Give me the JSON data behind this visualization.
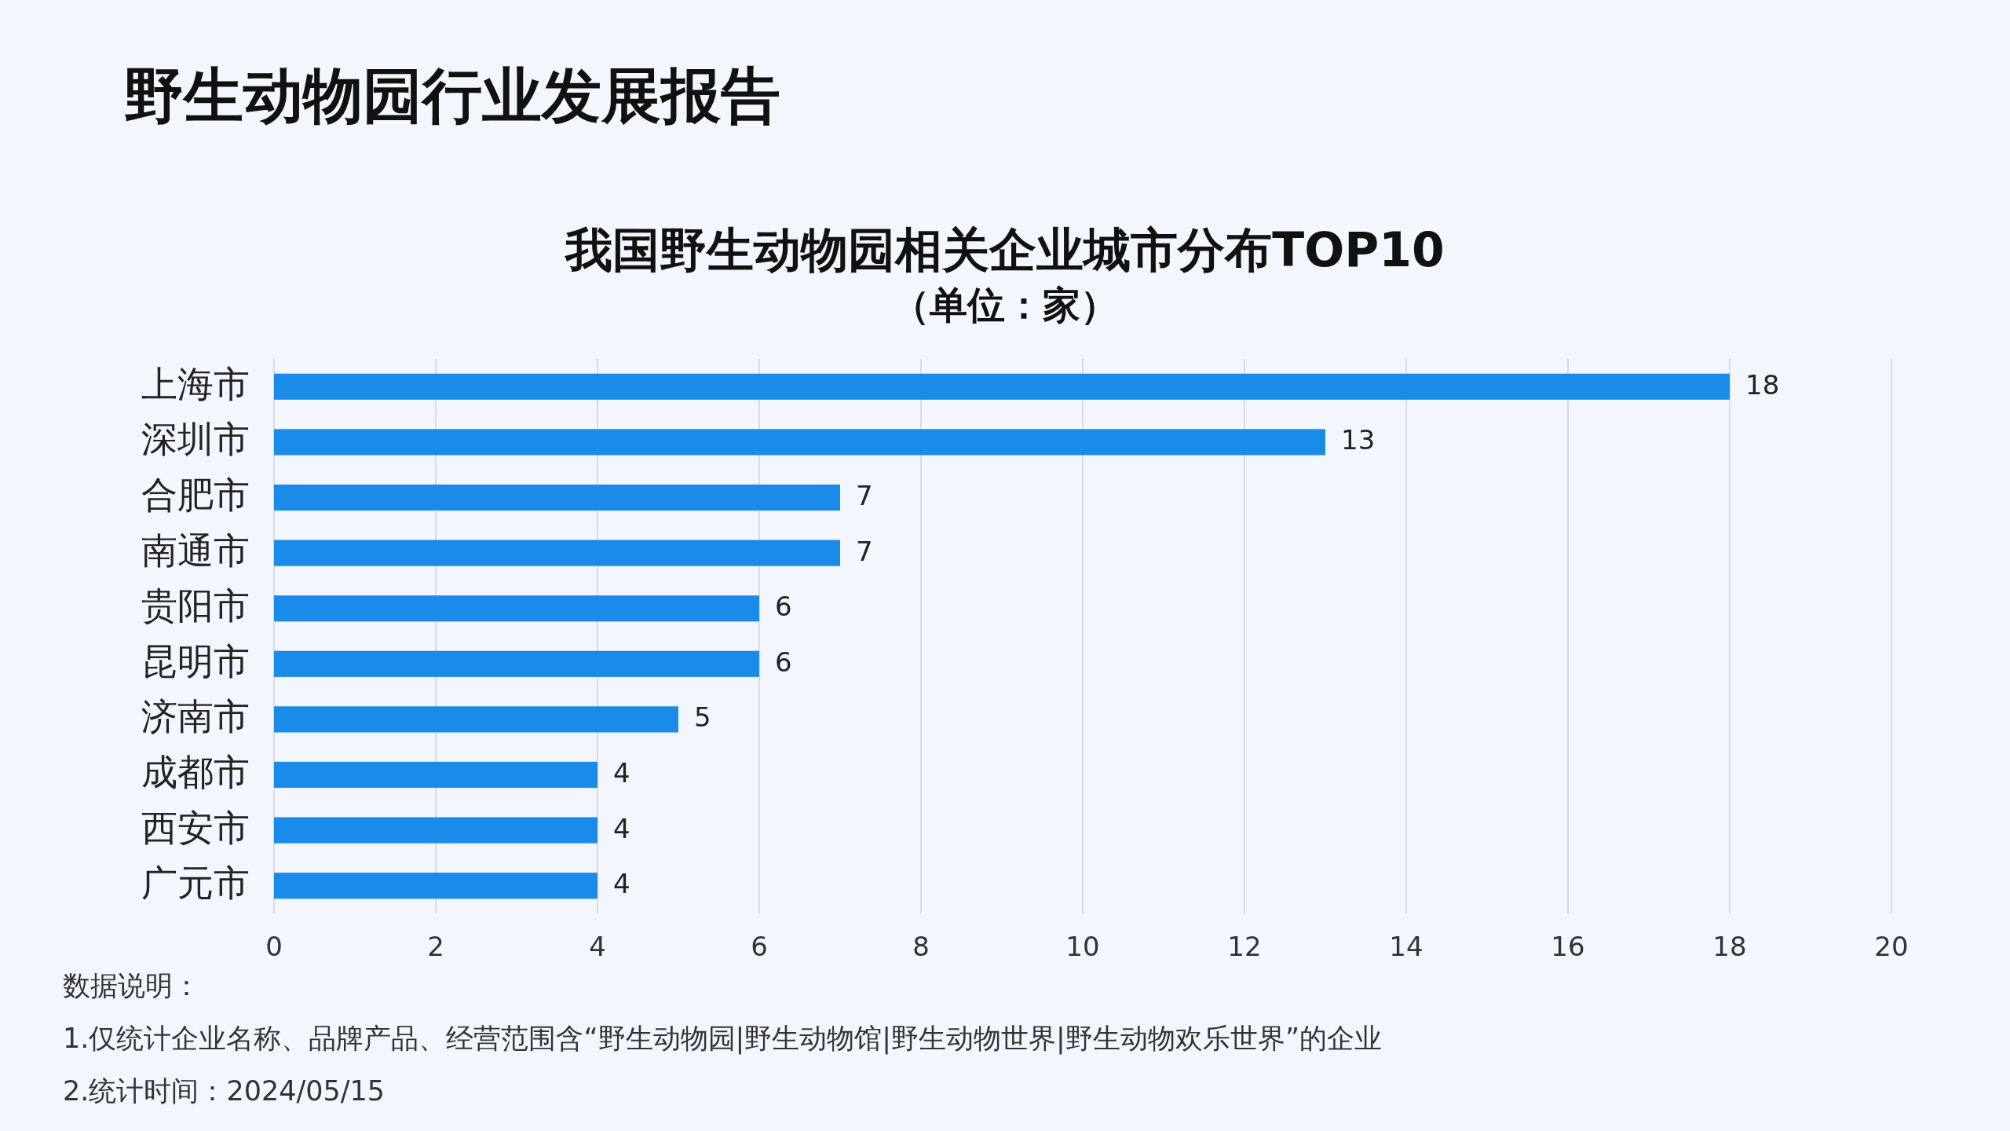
{
  "chart_data": {
    "type": "bar",
    "orientation": "horizontal",
    "title": "我国野生动物园相关企业城市分布TOP10",
    "subtitle": "（单位：家）",
    "categories": [
      "上海市",
      "深圳市",
      "合肥市",
      "南通市",
      "贵阳市",
      "昆明市",
      "济南市",
      "成都市",
      "西安市",
      "广元市"
    ],
    "values": [
      18,
      13,
      7,
      7,
      6,
      6,
      5,
      4,
      4,
      4
    ],
    "color": "#1a8be8",
    "xlim": [
      0,
      20
    ],
    "xticks": [
      0,
      2,
      4,
      6,
      8,
      10,
      12,
      14,
      16,
      18,
      20
    ],
    "grid": "x",
    "data_labels": true,
    "annotations": [
      "野生动物园行业发展报告",
      "数据说明：",
      "1.仅统计企业名称、品牌产品、经营范围含“野生动物园|野生动物馆|野生动物世界|野生动物欢乐世界”的企业",
      "2.统计时间：2024/05/15"
    ]
  }
}
